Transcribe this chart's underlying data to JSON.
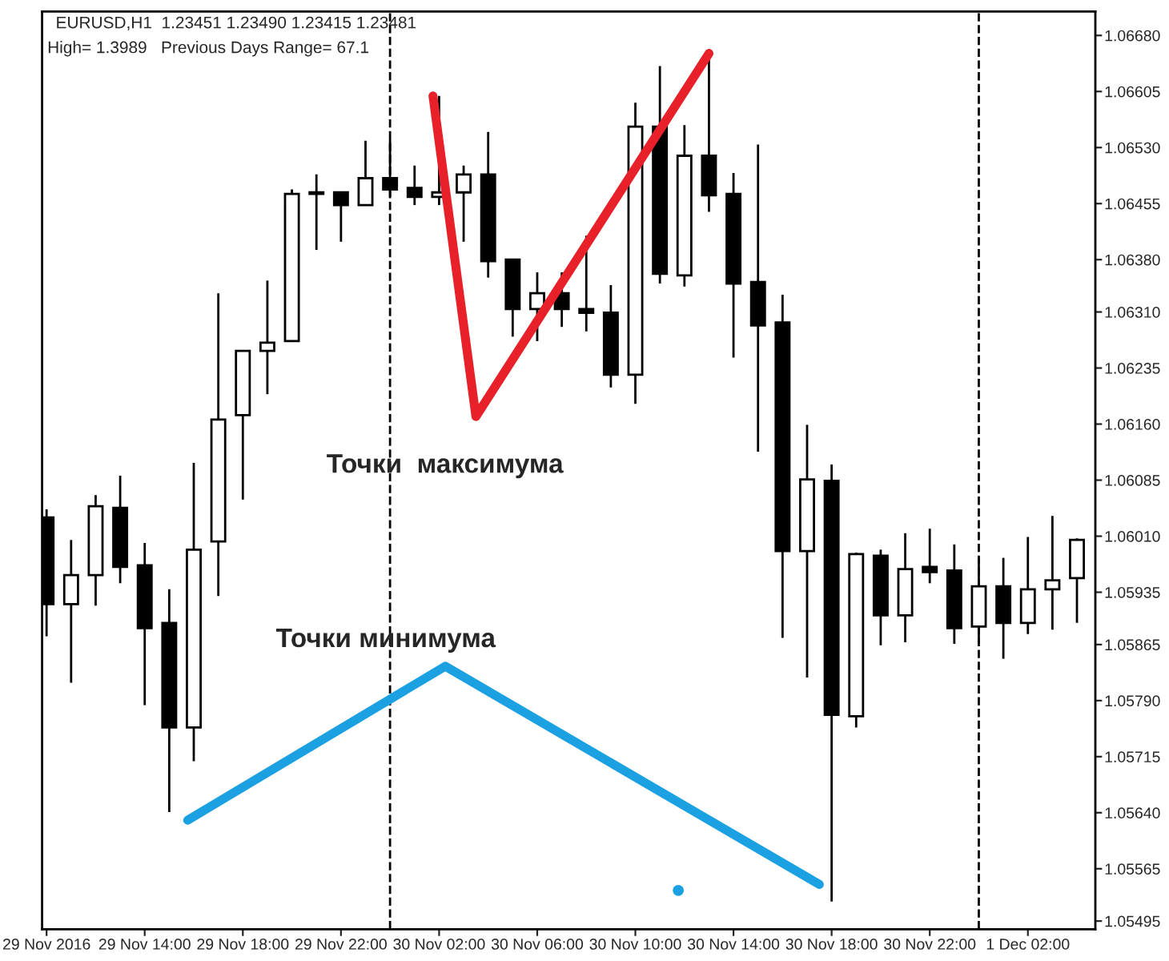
{
  "chart_data": {
    "type": "candlestick",
    "title": "EURUSD,H1  1.23451 1.23490 1.23415 1.23481",
    "subtitle": "High= 1.3989   Previous Days Range= 67.1",
    "x": [
      "2016-11-29T10:00",
      "2016-11-29T11:00",
      "2016-11-29T12:00",
      "2016-11-29T13:00",
      "2016-11-29T14:00",
      "2016-11-29T15:00",
      "2016-11-29T16:00",
      "2016-11-29T17:00",
      "2016-11-29T18:00",
      "2016-11-29T19:00",
      "2016-11-29T20:00",
      "2016-11-29T21:00",
      "2016-11-29T22:00",
      "2016-11-29T23:00",
      "2016-11-30T00:00",
      "2016-11-30T01:00",
      "2016-11-30T02:00",
      "2016-11-30T03:00",
      "2016-11-30T04:00",
      "2016-11-30T05:00",
      "2016-11-30T06:00",
      "2016-11-30T07:00",
      "2016-11-30T08:00",
      "2016-11-30T09:00",
      "2016-11-30T10:00",
      "2016-11-30T11:00",
      "2016-11-30T12:00",
      "2016-11-30T13:00",
      "2016-11-30T14:00",
      "2016-11-30T15:00",
      "2016-11-30T16:00",
      "2016-11-30T17:00",
      "2016-11-30T18:00",
      "2016-11-30T19:00",
      "2016-11-30T20:00",
      "2016-11-30T21:00",
      "2016-11-30T22:00",
      "2016-11-30T23:00",
      "2016-12-01T00:00",
      "2016-12-01T01:00",
      "2016-12-01T02:00",
      "2016-12-01T03:00",
      "2016-12-01T04:00"
    ],
    "ohlc": [
      [
        1.06035,
        1.06046,
        1.05876,
        1.05919
      ],
      [
        1.05919,
        1.06005,
        1.05814,
        1.05958
      ],
      [
        1.05958,
        1.06065,
        1.05917,
        1.0605
      ],
      [
        1.06048,
        1.06091,
        1.05947,
        1.05969
      ],
      [
        1.05971,
        1.06001,
        1.05784,
        1.05887
      ],
      [
        1.05894,
        1.05939,
        1.05641,
        1.05754
      ],
      [
        1.05754,
        1.06108,
        1.05709,
        1.05992
      ],
      [
        1.06003,
        1.06335,
        1.0593,
        1.06166
      ],
      [
        1.06172,
        1.06258,
        1.06059,
        1.06258
      ],
      [
        1.06258,
        1.06352,
        1.062,
        1.06269
      ],
      [
        1.06271,
        1.06474,
        1.06271,
        1.06468
      ],
      [
        1.06468,
        1.06494,
        1.06393,
        1.0647
      ],
      [
        1.0647,
        1.0647,
        1.06404,
        1.06453
      ],
      [
        1.06453,
        1.06539,
        1.06453,
        1.06489
      ],
      [
        1.06489,
        1.06541,
        1.06464,
        1.06474
      ],
      [
        1.06476,
        1.06506,
        1.06453,
        1.06464
      ],
      [
        1.06464,
        1.06599,
        1.06453,
        1.0647
      ],
      [
        1.0647,
        1.06506,
        1.06404,
        1.06494
      ],
      [
        1.06494,
        1.06551,
        1.06356,
        1.06378
      ],
      [
        1.0638,
        1.0638,
        1.06277,
        1.06314
      ],
      [
        1.06314,
        1.06363,
        1.06271,
        1.06335
      ],
      [
        1.06335,
        1.06363,
        1.0629,
        1.06314
      ],
      [
        1.06314,
        1.06412,
        1.06284,
        1.06309
      ],
      [
        1.06309,
        1.06346,
        1.06209,
        1.06226
      ],
      [
        1.06226,
        1.0659,
        1.06187,
        1.06558
      ],
      [
        1.06558,
        1.06639,
        1.06348,
        1.06361
      ],
      [
        1.06359,
        1.0656,
        1.06344,
        1.06519
      ],
      [
        1.06519,
        1.0665,
        1.06444,
        1.06466
      ],
      [
        1.06468,
        1.06496,
        1.06249,
        1.06348
      ],
      [
        1.0635,
        1.06534,
        1.06123,
        1.06292
      ],
      [
        1.06296,
        1.06333,
        1.05874,
        1.0599
      ],
      [
        1.0599,
        1.06159,
        1.05821,
        1.06086
      ],
      [
        1.06084,
        1.06106,
        1.05521,
        1.05771
      ],
      [
        1.05769,
        1.05988,
        1.05754,
        1.05986
      ],
      [
        1.05984,
        1.05992,
        1.05864,
        1.05904
      ],
      [
        1.05904,
        1.06014,
        1.05868,
        1.05966
      ],
      [
        1.05969,
        1.0602,
        1.05947,
        1.05962
      ],
      [
        1.05964,
        1.05999,
        1.05866,
        1.05887
      ],
      [
        1.05889,
        1.05981,
        1.05866,
        1.05943
      ],
      [
        1.05943,
        1.05981,
        1.05846,
        1.05894
      ],
      [
        1.05894,
        1.06009,
        1.05879,
        1.05939
      ],
      [
        1.05939,
        1.06037,
        1.05885,
        1.05951
      ],
      [
        1.05954,
        1.06007,
        1.05894,
        1.06005
      ]
    ],
    "series": [
      {
        "type": "line",
        "color": "#e8202a",
        "x": [
          "2016-11-30T01:45",
          "2016-11-30T03:30",
          "2016-11-30T13:00"
        ],
        "values": [
          1.06599,
          1.0617,
          1.06656
        ]
      },
      {
        "type": "line",
        "color": "#1ba1e2",
        "x": [
          "2016-11-29T15:45",
          "2016-11-30T02:15",
          "2016-11-30T17:30"
        ],
        "values": [
          1.0563,
          1.05836,
          1.05544
        ]
      },
      {
        "type": "scatter",
        "color": "#1ba1e2",
        "x": [
          "2016-11-30T11:45"
        ],
        "values": [
          1.05536
        ]
      }
    ],
    "annotations": [
      "Точки  максимума",
      "Точки минимума"
    ],
    "ref_lines": [
      {
        "axis": "x",
        "value": "2016-11-30T00:00",
        "color": "#000000",
        "line_style": "dashed"
      },
      {
        "axis": "x",
        "value": "2016-12-01T00:00",
        "color": "#000000",
        "line_style": "dashed"
      }
    ],
    "xlim": [
      "2016-11-29T09:49",
      "2016-12-01T04:45"
    ],
    "xticks": [
      {
        "value": "2016-11-29T10:00",
        "label": "29 Nov 2016"
      },
      {
        "value": "2016-11-29T14:00",
        "label": "29 Nov 14:00"
      },
      {
        "value": "2016-11-29T18:00",
        "label": "29 Nov 18:00"
      },
      {
        "value": "2016-11-29T22:00",
        "label": "29 Nov 22:00"
      },
      {
        "value": "2016-11-30T02:00",
        "label": "30 Nov 02:00"
      },
      {
        "value": "2016-11-30T06:00",
        "label": "30 Nov 06:00"
      },
      {
        "value": "2016-11-30T10:00",
        "label": "30 Nov 10:00"
      },
      {
        "value": "2016-11-30T14:00",
        "label": "30 Nov 14:00"
      },
      {
        "value": "2016-11-30T18:00",
        "label": "30 Nov 18:00"
      },
      {
        "value": "2016-11-30T22:00",
        "label": "30 Nov 22:00"
      },
      {
        "value": "2016-12-01T02:00",
        "label": "1 Dec 02:00"
      }
    ],
    "ylim": [
      1.05484,
      1.06712
    ],
    "yticks": [
      {
        "value": 1.0668,
        "label": "1.06680"
      },
      {
        "value": 1.06605,
        "label": "1.06605"
      },
      {
        "value": 1.0653,
        "label": "1.06530"
      },
      {
        "value": 1.06455,
        "label": "1.06455"
      },
      {
        "value": 1.0638,
        "label": "1.06380"
      },
      {
        "value": 1.0631,
        "label": "1.06310"
      },
      {
        "value": 1.06235,
        "label": "1.06235"
      },
      {
        "value": 1.0616,
        "label": "1.06160"
      },
      {
        "value": 1.06085,
        "label": "1.06085"
      },
      {
        "value": 1.0601,
        "label": "1.06010"
      },
      {
        "value": 1.05935,
        "label": "1.05935"
      },
      {
        "value": 1.05865,
        "label": "1.05865"
      },
      {
        "value": 1.0579,
        "label": "1.05790"
      },
      {
        "value": 1.05715,
        "label": "1.05715"
      },
      {
        "value": 1.0564,
        "label": "1.05640"
      },
      {
        "value": 1.05565,
        "label": "1.05565"
      },
      {
        "value": 1.05495,
        "label": "1.05495"
      }
    ],
    "grid": false,
    "legend": false
  }
}
